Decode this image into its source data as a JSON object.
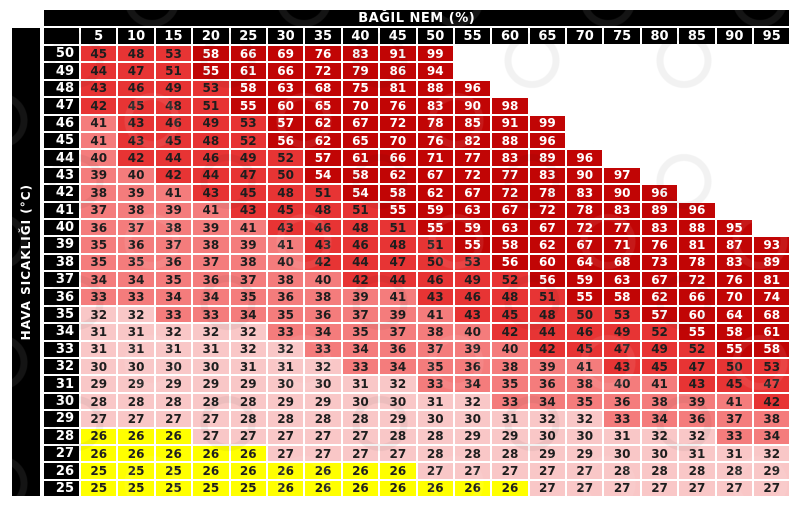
{
  "axes": {
    "humidity_title": "BAĞIL NEM (%)",
    "temperature_title": "HAVA SICAKLIĞI (°C)"
  },
  "colors": {
    "background": "#ffffff",
    "header_bg": "#000000",
    "header_text": "#ffffff",
    "grid_line": "#ffffff",
    "yellow": "#ffff00",
    "light_pink": "#f9c7c7",
    "salmon": "#f47c7c",
    "red": "#e73434",
    "dark_red": "#c10505",
    "cell_text_dark": "#1e1e1e",
    "cell_text_light": "#ffffff"
  },
  "color_bands": [
    {
      "max": 26,
      "color": "yellow",
      "text": "dark"
    },
    {
      "max": 32,
      "color": "light_pink",
      "text": "dark"
    },
    {
      "max": 41,
      "color": "salmon",
      "text": "dark"
    },
    {
      "max": 53,
      "color": "red",
      "text": "dark"
    },
    {
      "max": 999,
      "color": "dark_red",
      "text": "light"
    }
  ],
  "chart_data": {
    "type": "heatmap",
    "title": "",
    "xlabel": "BAĞIL NEM (%)",
    "ylabel": "HAVA SICAKLIĞI (°C)",
    "x": [
      5,
      10,
      15,
      20,
      25,
      30,
      35,
      40,
      45,
      50,
      55,
      60,
      65,
      70,
      75,
      80,
      85,
      90,
      95
    ],
    "y": [
      50,
      49,
      48,
      47,
      46,
      45,
      44,
      43,
      42,
      41,
      40,
      39,
      38,
      37,
      36,
      35,
      34,
      33,
      32,
      31,
      30,
      29,
      28,
      27,
      26,
      25
    ],
    "rows": [
      {
        "temp": 50,
        "values": [
          45,
          48,
          53,
          58,
          66,
          69,
          76,
          83,
          91,
          99
        ]
      },
      {
        "temp": 49,
        "values": [
          44,
          47,
          51,
          55,
          61,
          66,
          72,
          79,
          86,
          94
        ]
      },
      {
        "temp": 48,
        "values": [
          43,
          46,
          49,
          53,
          58,
          63,
          68,
          75,
          81,
          88,
          96
        ]
      },
      {
        "temp": 47,
        "values": [
          42,
          45,
          48,
          51,
          55,
          60,
          65,
          70,
          76,
          83,
          90,
          98
        ]
      },
      {
        "temp": 46,
        "values": [
          41,
          43,
          46,
          49,
          53,
          57,
          62,
          67,
          72,
          78,
          85,
          91,
          99
        ]
      },
      {
        "temp": 45,
        "values": [
          41,
          43,
          45,
          48,
          52,
          56,
          62,
          65,
          70,
          76,
          82,
          88,
          96
        ]
      },
      {
        "temp": 44,
        "values": [
          40,
          42,
          44,
          46,
          49,
          52,
          57,
          61,
          66,
          71,
          77,
          83,
          89,
          96
        ]
      },
      {
        "temp": 43,
        "values": [
          39,
          40,
          42,
          44,
          47,
          50,
          54,
          58,
          62,
          67,
          72,
          77,
          83,
          90,
          97
        ]
      },
      {
        "temp": 42,
        "values": [
          38,
          39,
          41,
          43,
          45,
          48,
          51,
          54,
          58,
          62,
          67,
          72,
          78,
          83,
          90,
          96
        ]
      },
      {
        "temp": 41,
        "values": [
          37,
          38,
          39,
          41,
          43,
          45,
          48,
          51,
          55,
          59,
          63,
          67,
          72,
          78,
          83,
          89,
          96
        ]
      },
      {
        "temp": 40,
        "values": [
          36,
          37,
          38,
          39,
          41,
          43,
          46,
          48,
          51,
          55,
          59,
          63,
          67,
          72,
          77,
          83,
          88,
          95
        ]
      },
      {
        "temp": 39,
        "values": [
          35,
          36,
          37,
          38,
          39,
          41,
          43,
          46,
          48,
          51,
          55,
          58,
          62,
          67,
          71,
          76,
          81,
          87,
          93
        ]
      },
      {
        "temp": 38,
        "values": [
          35,
          35,
          36,
          37,
          38,
          40,
          42,
          44,
          47,
          50,
          53,
          56,
          60,
          64,
          68,
          73,
          78,
          83,
          89
        ]
      },
      {
        "temp": 37,
        "values": [
          34,
          34,
          35,
          36,
          37,
          38,
          40,
          42,
          44,
          46,
          49,
          52,
          56,
          59,
          63,
          67,
          72,
          76,
          81
        ]
      },
      {
        "temp": 36,
        "values": [
          33,
          33,
          34,
          34,
          35,
          36,
          38,
          39,
          41,
          43,
          46,
          48,
          51,
          55,
          58,
          62,
          66,
          70,
          74
        ]
      },
      {
        "temp": 35,
        "values": [
          32,
          32,
          33,
          33,
          34,
          35,
          36,
          37,
          39,
          41,
          43,
          45,
          48,
          50,
          53,
          57,
          60,
          64,
          68
        ]
      },
      {
        "temp": 34,
        "values": [
          31,
          31,
          32,
          32,
          32,
          33,
          34,
          35,
          37,
          38,
          40,
          42,
          44,
          46,
          49,
          52,
          55,
          58,
          61
        ]
      },
      {
        "temp": 33,
        "values": [
          31,
          31,
          31,
          31,
          32,
          32,
          33,
          34,
          36,
          37,
          39,
          40,
          42,
          45,
          47,
          49,
          52,
          55,
          58
        ]
      },
      {
        "temp": 32,
        "values": [
          30,
          30,
          30,
          30,
          31,
          31,
          32,
          33,
          34,
          35,
          36,
          38,
          39,
          41,
          43,
          45,
          47,
          50,
          53
        ]
      },
      {
        "temp": 31,
        "values": [
          29,
          29,
          29,
          29,
          29,
          30,
          30,
          31,
          32,
          33,
          34,
          35,
          36,
          38,
          40,
          41,
          43,
          45,
          47
        ]
      },
      {
        "temp": 30,
        "values": [
          28,
          28,
          28,
          28,
          28,
          29,
          29,
          30,
          30,
          31,
          32,
          33,
          34,
          35,
          36,
          38,
          39,
          41,
          42
        ]
      },
      {
        "temp": 29,
        "values": [
          27,
          27,
          27,
          27,
          28,
          28,
          28,
          28,
          29,
          30,
          30,
          31,
          32,
          32,
          33,
          34,
          36,
          37,
          38
        ]
      },
      {
        "temp": 28,
        "values": [
          26,
          26,
          26,
          27,
          27,
          27,
          27,
          27,
          28,
          28,
          29,
          29,
          30,
          30,
          31,
          32,
          32,
          33,
          34
        ]
      },
      {
        "temp": 27,
        "values": [
          26,
          26,
          26,
          26,
          26,
          27,
          27,
          27,
          27,
          28,
          28,
          28,
          29,
          29,
          30,
          30,
          31,
          31,
          32
        ]
      },
      {
        "temp": 26,
        "values": [
          25,
          25,
          25,
          26,
          26,
          26,
          26,
          26,
          26,
          27,
          27,
          27,
          27,
          27,
          28,
          28,
          28,
          28,
          29
        ]
      },
      {
        "temp": 25,
        "values": [
          25,
          25,
          25,
          25,
          25,
          26,
          26,
          26,
          26,
          26,
          26,
          26,
          27,
          27,
          27,
          27,
          27,
          27,
          27
        ]
      }
    ]
  }
}
